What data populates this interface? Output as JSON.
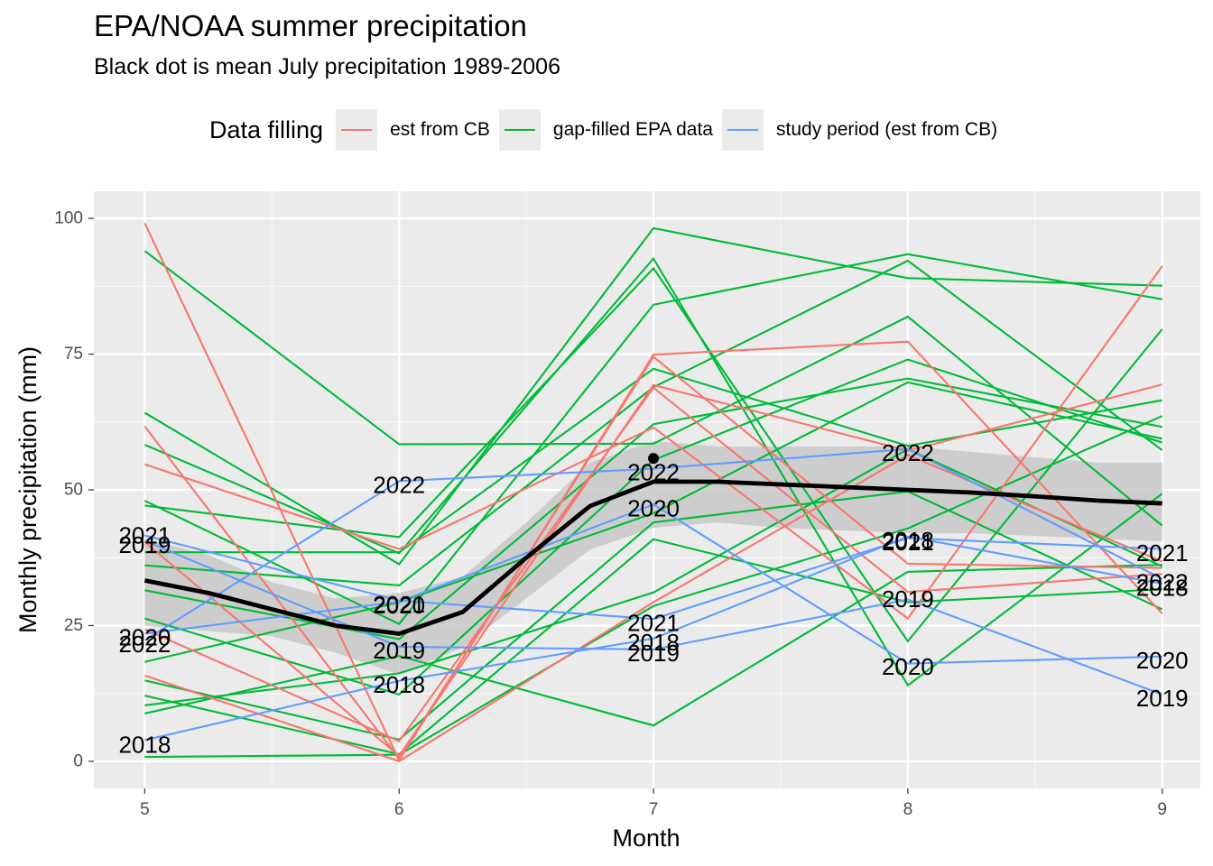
{
  "chart_data": {
    "type": "line",
    "title": "EPA/NOAA summer precipitation",
    "subtitle": "Black dot is mean July precipitation 1989-2006",
    "xlabel": "Month",
    "ylabel": "Monthly precipitation (mm)",
    "xlim": [
      4.8,
      9.15
    ],
    "ylim": [
      -5,
      105
    ],
    "x_ticks": [
      5,
      6,
      7,
      8,
      9
    ],
    "y_ticks": [
      0,
      25,
      50,
      75,
      100
    ],
    "x_tick_labels": [
      "5",
      "6",
      "7",
      "8",
      "9"
    ],
    "y_tick_labels": [
      "0",
      "25",
      "50",
      "75",
      "100"
    ],
    "grid": true,
    "legend": {
      "title": "Data filling",
      "position": "top",
      "items": [
        {
          "label": "est from CB",
          "color": "#F8766D"
        },
        {
          "label": "gap-filled EPA data",
          "color": "#00BA38"
        },
        {
          "label": "study period (est from CB)",
          "color": "#619CFF"
        }
      ]
    },
    "series": [
      {
        "group": "est from CB",
        "color": "#F8766D",
        "x": [
          5,
          6,
          7,
          8,
          9
        ],
        "values": [
          99.1,
          0.2,
          74.9,
          77.3,
          27.2
        ]
      },
      {
        "group": "est from CB",
        "color": "#F8766D",
        "x": [
          5,
          6,
          7,
          8,
          9
        ],
        "values": [
          61.7,
          0.5,
          74.5,
          36.4,
          35.6
        ]
      },
      {
        "group": "est from CB",
        "color": "#F8766D",
        "x": [
          5,
          6,
          7,
          8,
          9
        ],
        "values": [
          54.7,
          39.1,
          61.5,
          26.3,
          91.2
        ]
      },
      {
        "group": "est from CB",
        "color": "#F8766D",
        "x": [
          5,
          6,
          7,
          8,
          9
        ],
        "values": [
          40.4,
          1.0,
          69.3,
          57.2,
          69.4
        ]
      },
      {
        "group": "est from CB",
        "color": "#F8766D",
        "x": [
          5,
          6,
          7,
          8,
          9
        ],
        "values": [
          24.3,
          3.7,
          68.8,
          31.2,
          34.5
        ]
      },
      {
        "group": "est from CB",
        "color": "#F8766D",
        "x": [
          5,
          6,
          7,
          8,
          9
        ],
        "values": [
          15.8,
          0.0,
          29.3,
          56.4,
          36.8
        ]
      },
      {
        "group": "gap-filled EPA data",
        "color": "#00BA38",
        "x": [
          5,
          6,
          7,
          8,
          9
        ],
        "values": [
          94.0,
          58.4,
          58.5,
          81.9,
          43.4
        ]
      },
      {
        "group": "gap-filled EPA data",
        "color": "#00BA38",
        "x": [
          5,
          6,
          7,
          8,
          9
        ],
        "values": [
          64.2,
          36.3,
          98.2,
          89.0,
          87.6
        ]
      },
      {
        "group": "gap-filled EPA data",
        "color": "#00BA38",
        "x": [
          5,
          6,
          7,
          8,
          9
        ],
        "values": [
          58.3,
          38.3,
          92.6,
          14.0,
          49.3
        ]
      },
      {
        "group": "gap-filled EPA data",
        "color": "#00BA38",
        "x": [
          5,
          6,
          7,
          8,
          9
        ],
        "values": [
          48.0,
          25.3,
          84.1,
          93.4,
          85.1
        ]
      },
      {
        "group": "gap-filled EPA data",
        "color": "#00BA38",
        "x": [
          5,
          6,
          7,
          8,
          9
        ],
        "values": [
          47.1,
          41.3,
          90.8,
          22.1,
          79.6
        ]
      },
      {
        "group": "gap-filled EPA data",
        "color": "#00BA38",
        "x": [
          5,
          6,
          7,
          8,
          9
        ],
        "values": [
          38.5,
          38.5,
          72.3,
          58.1,
          66.5
        ]
      },
      {
        "group": "gap-filled EPA data",
        "color": "#00BA38",
        "x": [
          5,
          6,
          7,
          8,
          9
        ],
        "values": [
          36.1,
          32.4,
          68.9,
          92.2,
          57.3
        ]
      },
      {
        "group": "gap-filled EPA data",
        "color": "#00BA38",
        "x": [
          5,
          6,
          7,
          8,
          9
        ],
        "values": [
          31.5,
          22.5,
          62.1,
          70.5,
          61.6
        ]
      },
      {
        "group": "gap-filled EPA data",
        "color": "#00BA38",
        "x": [
          5,
          6,
          7,
          8,
          9
        ],
        "values": [
          26.3,
          12.3,
          55.5,
          74.0,
          58.7
        ]
      },
      {
        "group": "gap-filled EPA data",
        "color": "#00BA38",
        "x": [
          5,
          6,
          7,
          8,
          9
        ],
        "values": [
          18.3,
          29.3,
          45.7,
          69.8,
          59.4
        ]
      },
      {
        "group": "gap-filled EPA data",
        "color": "#00BA38",
        "x": [
          5,
          6,
          7,
          8,
          9
        ],
        "values": [
          14.9,
          4.0,
          44.0,
          49.7,
          28.0
        ]
      },
      {
        "group": "gap-filled EPA data",
        "color": "#00BA38",
        "x": [
          5,
          6,
          7,
          8,
          9
        ],
        "values": [
          12.1,
          1.3,
          40.9,
          29.3,
          31.7
        ]
      },
      {
        "group": "gap-filled EPA data",
        "color": "#00BA38",
        "x": [
          5,
          6,
          7,
          8,
          9
        ],
        "values": [
          10.3,
          16.2,
          31.1,
          57.5,
          35.9
        ]
      },
      {
        "group": "gap-filled EPA data",
        "color": "#00BA38",
        "x": [
          5,
          6,
          7,
          8,
          9
        ],
        "values": [
          8.8,
          19.4,
          6.6,
          34.9,
          36.2
        ]
      },
      {
        "group": "gap-filled EPA data",
        "color": "#00BA38",
        "x": [
          5,
          6,
          7,
          8,
          9
        ],
        "values": [
          0.8,
          1.2,
          28.6,
          42.9,
          63.6
        ]
      },
      {
        "group": "study period (est from CB)",
        "color": "#619CFF",
        "label": "2018",
        "x": [
          5,
          6,
          7,
          8,
          9
        ],
        "values": [
          3.9,
          14.8,
          22.6,
          41.4,
          32.7
        ]
      },
      {
        "group": "study period (est from CB)",
        "color": "#619CFF",
        "label": "2019",
        "x": [
          5,
          6,
          7,
          8,
          9
        ],
        "values": [
          40.6,
          21.1,
          20.6,
          29.8,
          12.3
        ]
      },
      {
        "group": "study period (est from CB)",
        "color": "#619CFF",
        "label": "2020",
        "x": [
          5,
          6,
          7,
          8,
          9
        ],
        "values": [
          23.5,
          29.4,
          47.3,
          18.0,
          19.3
        ]
      },
      {
        "group": "study period (est from CB)",
        "color": "#619CFF",
        "label": "2021",
        "x": [
          5,
          6,
          7,
          8,
          9
        ],
        "values": [
          41.6,
          29.6,
          26.2,
          41.1,
          39.1
        ]
      },
      {
        "group": "study period (est from CB)",
        "color": "#619CFF",
        "label": "2022",
        "x": [
          5,
          6,
          7,
          8,
          9
        ],
        "values": [
          22.3,
          51.6,
          53.9,
          57.5,
          33.6
        ]
      }
    ],
    "smooth": {
      "color": "#000000",
      "x": [
        5,
        5.25,
        5.5,
        5.75,
        6,
        6.25,
        6.5,
        6.75,
        7,
        7.25,
        7.5,
        7.75,
        8,
        8.25,
        8.5,
        8.75,
        9
      ],
      "values": [
        33.3,
        31.0,
        28.0,
        25.0,
        23.5,
        27.5,
        37.5,
        47.0,
        51.5,
        51.5,
        51.0,
        50.5,
        50.0,
        49.5,
        48.8,
        48.0,
        47.5
      ],
      "ci_lower": [
        25.0,
        24.0,
        23.0,
        20.0,
        16.0,
        21.0,
        30.0,
        39.0,
        43.0,
        44.0,
        43.0,
        42.5,
        42.0,
        42.0,
        41.5,
        41.0,
        40.5
      ],
      "ci_upper": [
        41.0,
        38.0,
        33.0,
        30.0,
        31.0,
        34.0,
        44.0,
        55.0,
        59.0,
        58.0,
        58.0,
        58.0,
        58.0,
        57.0,
        56.0,
        55.0,
        55.0
      ]
    },
    "mean_point": {
      "label": "mean July precipitation 1989-2006",
      "x": 7,
      "y": 55.8
    },
    "annotations": [
      {
        "text": "2018",
        "x": 5,
        "y": 3.1
      },
      {
        "text": "2019",
        "x": 5,
        "y": 39.9
      },
      {
        "text": "2020",
        "x": 5,
        "y": 22.8
      },
      {
        "text": "2021",
        "x": 5,
        "y": 41.6
      },
      {
        "text": "2022",
        "x": 5,
        "y": 21.6
      },
      {
        "text": "2018",
        "x": 6,
        "y": 14.1
      },
      {
        "text": "2019",
        "x": 6,
        "y": 20.4
      },
      {
        "text": "2020",
        "x": 6,
        "y": 28.7
      },
      {
        "text": "2021",
        "x": 6,
        "y": 28.9
      },
      {
        "text": "2022",
        "x": 6,
        "y": 50.9
      },
      {
        "text": "2018",
        "x": 7,
        "y": 21.9
      },
      {
        "text": "2019",
        "x": 7,
        "y": 19.9
      },
      {
        "text": "2020",
        "x": 7,
        "y": 46.6
      },
      {
        "text": "2021",
        "x": 7,
        "y": 25.5
      },
      {
        "text": "2022",
        "x": 7,
        "y": 53.2
      },
      {
        "text": "2018",
        "x": 8,
        "y": 40.7
      },
      {
        "text": "2019",
        "x": 8,
        "y": 29.9
      },
      {
        "text": "2020",
        "x": 8,
        "y": 17.4
      },
      {
        "text": "2021",
        "x": 8,
        "y": 40.4
      },
      {
        "text": "2022",
        "x": 8,
        "y": 56.8
      },
      {
        "text": "2018",
        "x": 9,
        "y": 32.0
      },
      {
        "text": "2019",
        "x": 9,
        "y": 11.6
      },
      {
        "text": "2020",
        "x": 9,
        "y": 18.6
      },
      {
        "text": "2021",
        "x": 9,
        "y": 38.4
      },
      {
        "text": "2022",
        "x": 9,
        "y": 33.0
      }
    ]
  }
}
